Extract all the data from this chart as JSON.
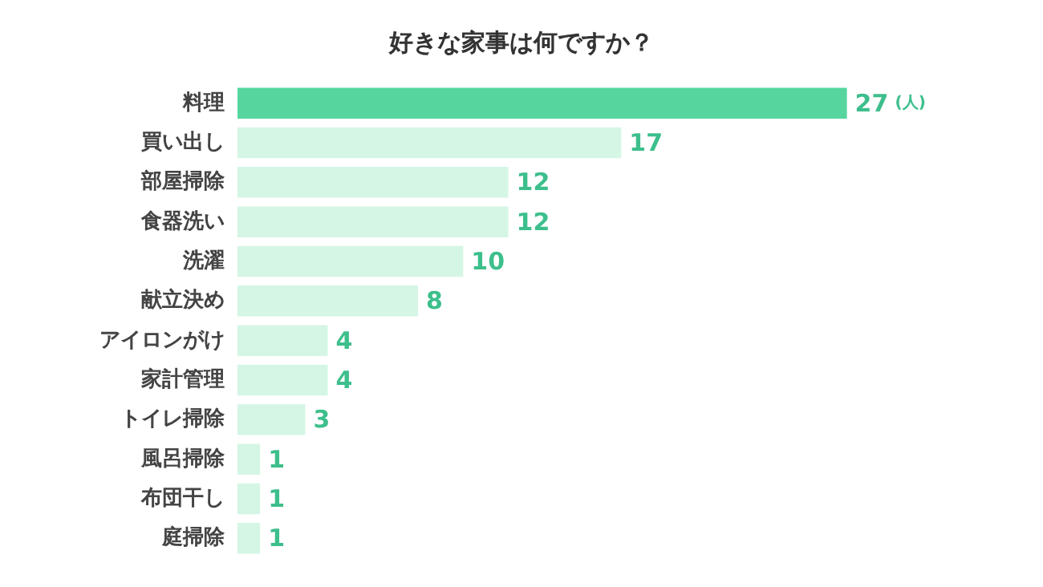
{
  "chart_data": {
    "type": "bar",
    "orientation": "horizontal",
    "title": "好きな家事は何ですか？",
    "categories": [
      "料理",
      "買い出し",
      "部屋掃除",
      "食器洗い",
      "洗濯",
      "献立決め",
      "アイロンがけ",
      "家計管理",
      "トイレ掃除",
      "風呂掃除",
      "布団干し",
      "庭掃除"
    ],
    "values": [
      27,
      17,
      12,
      12,
      10,
      8,
      4,
      4,
      3,
      1,
      1,
      1
    ],
    "colors": [
      "#56d69e",
      "#d5f6e5",
      "#d5f6e5",
      "#d5f6e5",
      "#d5f6e5",
      "#d5f6e5",
      "#d5f6e5",
      "#d5f6e5",
      "#d5f6e5",
      "#d5f6e5",
      "#d5f6e5",
      "#d5f6e5"
    ],
    "data_labels": true,
    "annotations": [
      "(人)"
    ]
  }
}
